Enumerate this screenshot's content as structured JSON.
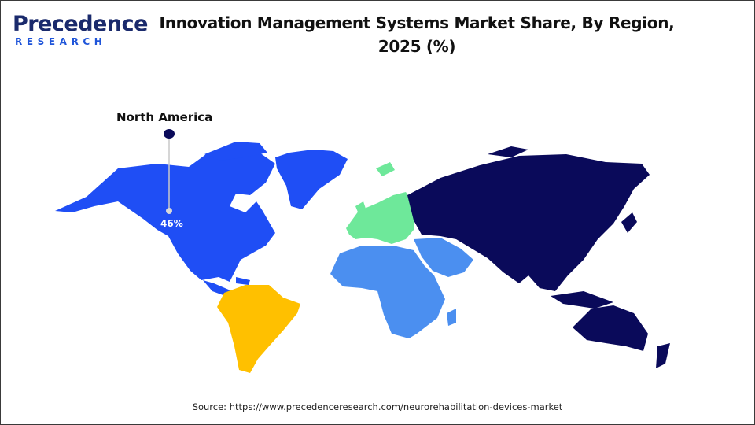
{
  "header": {
    "logo_word": "Precedence",
    "logo_sub": "RESEARCH",
    "title_line1": "Innovation Management Systems Market Share, By Region,",
    "title_line2": "2025 (%)"
  },
  "colors": {
    "north_america": "#1f4ef5",
    "south_america": "#ffc000",
    "europe": "#6ee89a",
    "middle_east_africa": "#4b8ff0",
    "asia_pacific": "#0a0a5a"
  },
  "callout": {
    "region": "North America",
    "value": "46%",
    "share": 46
  },
  "footer": {
    "source": "Source: https://www.precedenceresearch.com/neurorehabilitation-devices-market"
  }
}
